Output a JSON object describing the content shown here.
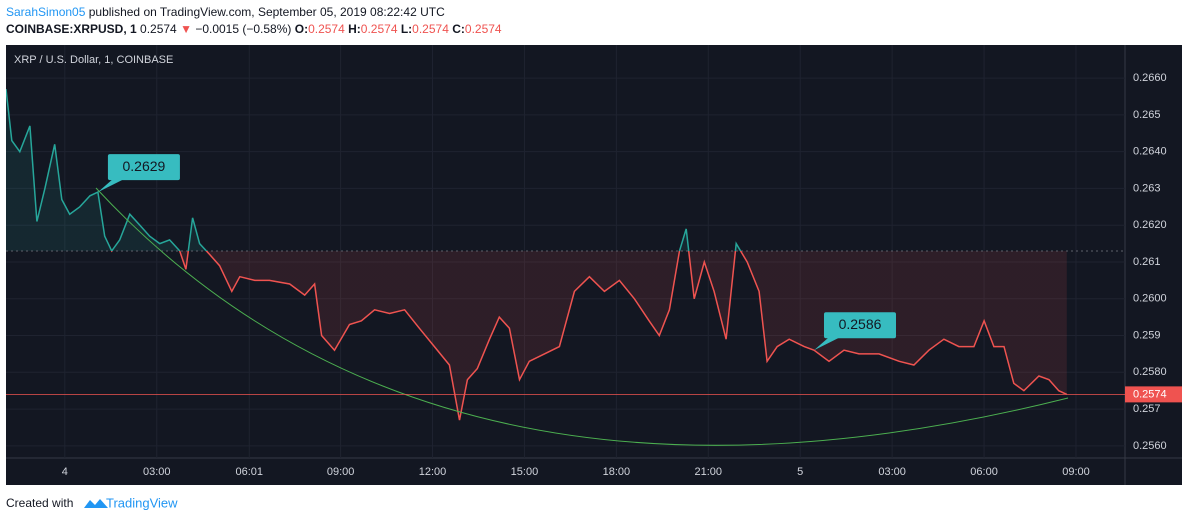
{
  "header": {
    "author": "SarahSimon05",
    "published": "published on TradingView.com, September 05, 2019 08:22:42 UTC",
    "symbol": "COINBASE:XRPUSD, 1",
    "price": "0.2574",
    "arrow": "▼",
    "change": "−0.0015 (−0.58%)",
    "ohlc": [
      {
        "key": "O:",
        "value": "0.2574"
      },
      {
        "key": "H:",
        "value": "0.2574"
      },
      {
        "key": "L:",
        "value": "0.2574"
      },
      {
        "key": "C:",
        "value": "0.2574"
      }
    ]
  },
  "chart_data": {
    "type": "line",
    "title": "XRP / U.S. Dollar, 1, COINBASE",
    "x": [
      -1.92,
      -1.73,
      -1.47,
      -1.14,
      -0.91,
      -0.65,
      -0.33,
      -0.1,
      0.16,
      0.49,
      0.82,
      1.08,
      1.3,
      1.53,
      1.79,
      2.12,
      2.45,
      2.77,
      3.1,
      3.42,
      3.75,
      3.95,
      4.17,
      4.4,
      4.73,
      5.05,
      5.45,
      5.71,
      6.2,
      6.68,
      7.34,
      7.83,
      8.15,
      8.38,
      8.8,
      9.29,
      9.68,
      10.11,
      10.6,
      11.09,
      11.57,
      12.06,
      12.55,
      12.88,
      13.14,
      13.46,
      13.86,
      14.18,
      14.51,
      14.84,
      15.16,
      15.65,
      16.14,
      16.63,
      17.12,
      17.61,
      18.1,
      18.59,
      19.07,
      19.4,
      19.73,
      20.06,
      20.28,
      20.54,
      20.87,
      21.19,
      21.58,
      21.91,
      22.27,
      22.66,
      22.92,
      23.25,
      23.64,
      24.13,
      24.45,
      24.94,
      25.43,
      25.92,
      26.57,
      27.23,
      27.71,
      28.2,
      28.69,
      29.18,
      29.67,
      30.0,
      30.32,
      30.65,
      30.97,
      31.3,
      31.79,
      32.12,
      32.44,
      32.7
    ],
    "values": [
      0.2657,
      0.2643,
      0.264,
      0.2647,
      0.2621,
      0.263,
      0.2642,
      0.2627,
      0.2623,
      0.2625,
      0.2628,
      0.2629,
      0.2617,
      0.2613,
      0.2616,
      0.2623,
      0.262,
      0.2617,
      0.2615,
      0.2616,
      0.2613,
      0.2608,
      0.2622,
      0.2615,
      0.2612,
      0.2609,
      0.2602,
      0.2606,
      0.2605,
      0.2605,
      0.2604,
      0.2601,
      0.2604,
      0.259,
      0.2586,
      0.2593,
      0.2594,
      0.2597,
      0.2596,
      0.2597,
      0.2592,
      0.2587,
      0.2582,
      0.2567,
      0.2578,
      0.2581,
      0.2589,
      0.2595,
      0.2592,
      0.2578,
      0.2583,
      0.2585,
      0.2587,
      0.2602,
      0.2606,
      0.2602,
      0.2605,
      0.26,
      0.2594,
      0.259,
      0.2597,
      0.2613,
      0.2619,
      0.26,
      0.261,
      0.2602,
      0.2589,
      0.2615,
      0.261,
      0.2602,
      0.2583,
      0.2587,
      0.2589,
      0.2587,
      0.2586,
      0.2583,
      0.2586,
      0.2585,
      0.2585,
      0.2583,
      0.2582,
      0.2586,
      0.2589,
      0.2587,
      0.2587,
      0.2594,
      0.2587,
      0.2587,
      0.2577,
      0.2575,
      0.2579,
      0.2578,
      0.2575,
      0.2574
    ],
    "baseline": 0.2613,
    "above_color": "#26a69a",
    "below_color": "#ef5350",
    "xlim": [
      -1.92,
      34.6
    ],
    "xticks": [
      {
        "value": 0,
        "label": "4"
      },
      {
        "value": 3,
        "label": "03:00"
      },
      {
        "value": 6.02,
        "label": "06:01"
      },
      {
        "value": 9,
        "label": "09:00"
      },
      {
        "value": 12,
        "label": "12:00"
      },
      {
        "value": 15,
        "label": "15:00"
      },
      {
        "value": 18,
        "label": "18:00"
      },
      {
        "value": 21,
        "label": "21:00"
      },
      {
        "value": 24,
        "label": "5"
      },
      {
        "value": 27,
        "label": "03:00"
      },
      {
        "value": 30,
        "label": "06:00"
      },
      {
        "value": 33,
        "label": "09:00"
      }
    ],
    "ylim": [
      0.25567,
      0.2669
    ],
    "yticks": [
      {
        "value": 0.256,
        "label": "0.2560"
      },
      0.257,
      {
        "value": 0.258,
        "label": "0.2580"
      },
      0.259,
      {
        "value": 0.26,
        "label": "0.2600"
      },
      0.261,
      {
        "value": 0.262,
        "label": "0.2620"
      },
      0.263,
      {
        "value": 0.264,
        "label": "0.2640"
      },
      0.265,
      {
        "value": 0.266,
        "label": "0.2660"
      }
    ],
    "grid": true,
    "last_price": 0.2574,
    "callouts": [
      {
        "x": 1.08,
        "value": 0.2629
      },
      {
        "x": 24.45,
        "value": 0.2586
      }
    ]
  },
  "footer": {
    "text": "Created with",
    "brand": "TradingView"
  }
}
